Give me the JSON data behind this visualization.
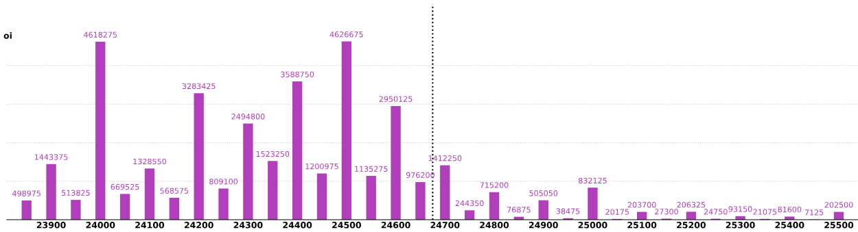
{
  "chart_data": {
    "type": "bar",
    "ylabel": "oi",
    "x": [
      23850,
      23900,
      23950,
      24000,
      24050,
      24100,
      24150,
      24200,
      24250,
      24300,
      24350,
      24400,
      24450,
      24500,
      24550,
      24600,
      24650,
      24700,
      24750,
      24800,
      24850,
      24900,
      24950,
      25000,
      25050,
      25100,
      25150,
      25200,
      25250,
      25300,
      25350,
      25400,
      25450,
      25500
    ],
    "series": [
      {
        "color": "#b13fbb",
        "values": [
          498975,
          1443375,
          513825,
          4618275,
          669525,
          1328550,
          568575,
          3283425,
          809100,
          2494800,
          1523250,
          3588750,
          1200975,
          4626675,
          1135275,
          2950125,
          976200,
          1412250,
          244350,
          715200,
          76875,
          505050,
          38475,
          832125,
          20175,
          203700,
          27300,
          206325,
          24750,
          93150,
          21075,
          81600,
          7125,
          202500
        ]
      }
    ],
    "data_labels": true,
    "xlim": [
      23810,
      25539
    ],
    "xticks": [
      23900,
      24000,
      24100,
      24200,
      24300,
      24400,
      24500,
      24600,
      24700,
      24800,
      24900,
      25000,
      25100,
      25200,
      25300,
      25400,
      25500
    ],
    "ylim": [
      0,
      5600000
    ],
    "yticks": [
      {
        "value": 1000000,
        "label": null
      },
      {
        "value": 2000000,
        "label": null
      },
      {
        "value": 3000000,
        "label": null
      },
      {
        "value": 4000000,
        "label": null
      }
    ],
    "tick_labels": "x",
    "grid": "y",
    "ref_lines": [
      {
        "axis": "x",
        "value": 24675,
        "line_style": "dotted",
        "color": "#000000"
      }
    ]
  }
}
